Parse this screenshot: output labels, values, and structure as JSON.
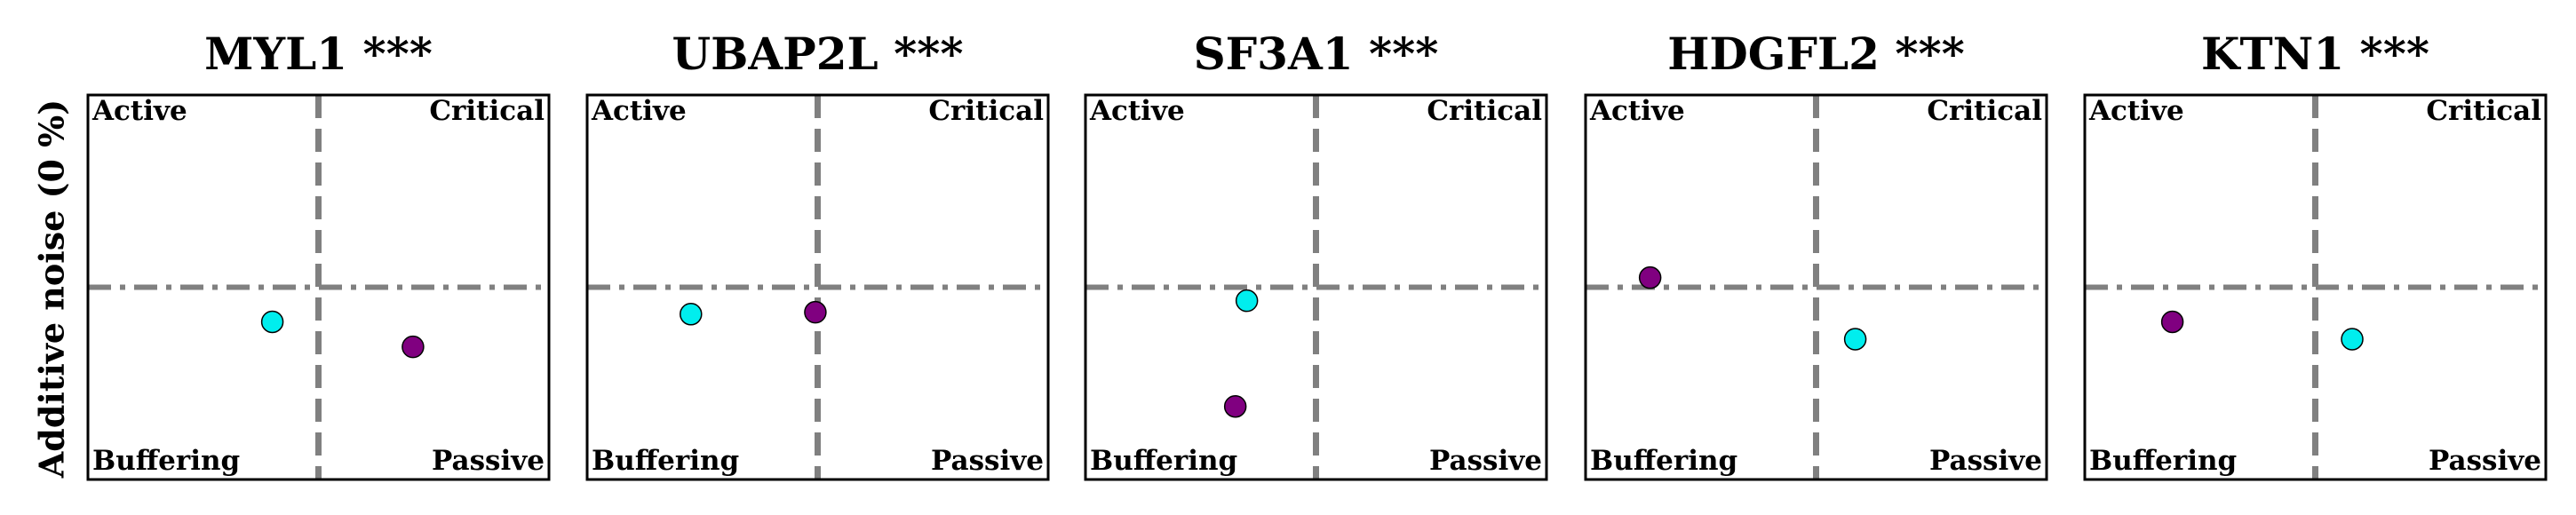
{
  "chart_data": {
    "type": "scatter",
    "ylabel": "Additive noise (0 %)",
    "quadrant_labels": {
      "top_left": "Active",
      "top_right": "Critical",
      "bottom_left": "Buffering",
      "bottom_right": "Passive"
    },
    "xlim": [
      -1,
      1
    ],
    "ylim": [
      -1,
      1
    ],
    "reference_lines": {
      "x": 0,
      "y": 0
    },
    "grid": false,
    "colors": {
      "cyan": "#00eeee",
      "purple": "#800080"
    },
    "panels": [
      {
        "title": "MYL1 ***",
        "points": [
          {
            "color": "cyan",
            "x": -0.2,
            "y": -0.18
          },
          {
            "color": "purple",
            "x": 0.41,
            "y": -0.31
          }
        ]
      },
      {
        "title": "UBAP2L ***",
        "points": [
          {
            "color": "cyan",
            "x": -0.55,
            "y": -0.14
          },
          {
            "color": "purple",
            "x": -0.01,
            "y": -0.13
          }
        ]
      },
      {
        "title": "SF3A1 ***",
        "points": [
          {
            "color": "cyan",
            "x": -0.3,
            "y": -0.07
          },
          {
            "color": "purple",
            "x": -0.35,
            "y": -0.62
          }
        ]
      },
      {
        "title": "HDGFL2 ***",
        "points": [
          {
            "color": "purple",
            "x": -0.72,
            "y": 0.05
          },
          {
            "color": "cyan",
            "x": 0.17,
            "y": -0.27
          }
        ]
      },
      {
        "title": "KTN1 ***",
        "points": [
          {
            "color": "purple",
            "x": -0.62,
            "y": -0.18
          },
          {
            "color": "cyan",
            "x": 0.16,
            "y": -0.27
          }
        ]
      }
    ]
  }
}
